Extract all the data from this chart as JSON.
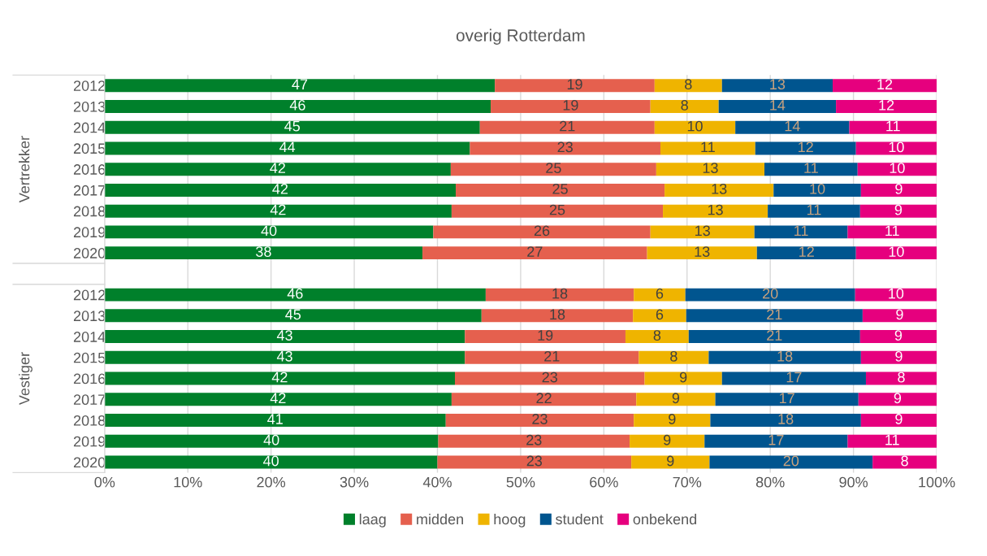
{
  "chart_data": {
    "type": "bar",
    "orientation": "horizontal",
    "stacked": true,
    "title": "overig Rotterdam",
    "annotations": [
      "Vertrekker",
      "Vestiger"
    ],
    "categories": [
      "2012",
      "2013",
      "2014",
      "2015",
      "2016",
      "2017",
      "2018",
      "2019",
      "2020",
      null,
      "2012",
      "2013",
      "2014",
      "2015",
      "2016",
      "2017",
      "2018",
      "2019",
      "2020"
    ],
    "series": [
      {
        "name": "laag",
        "color": "#00802b",
        "values": [
          46.9,
          46.4,
          45.1,
          43.9,
          41.6,
          42.2,
          41.7,
          39.5,
          38.2,
          null,
          45.8,
          45.3,
          43.3,
          43.3,
          42.1,
          41.7,
          41.0,
          40.1,
          40.0
        ],
        "value_labels": [
          "47",
          "46",
          "45",
          "44",
          "42",
          "42",
          "42",
          "40",
          "38",
          null,
          "46",
          "45",
          "43",
          "43",
          "42",
          "42",
          "41",
          "40",
          "40"
        ]
      },
      {
        "name": "midden",
        "color": "#e5604e",
        "values": [
          19.2,
          19.2,
          21.0,
          22.9,
          24.7,
          25.1,
          25.4,
          26.1,
          27.0,
          null,
          17.8,
          18.2,
          19.3,
          20.9,
          22.8,
          22.2,
          22.6,
          23.0,
          23.3
        ],
        "value_labels": [
          "19",
          "19",
          "21",
          "23",
          "25",
          "25",
          "25",
          "26",
          "27",
          null,
          "18",
          "18",
          "19",
          "21",
          "23",
          "22",
          "23",
          "23",
          "23"
        ]
      },
      {
        "name": "hoog",
        "color": "#efb400",
        "values": [
          8.1,
          8.2,
          9.7,
          11.4,
          13.0,
          13.1,
          12.6,
          12.5,
          13.2,
          null,
          6.2,
          6.4,
          7.6,
          8.4,
          9.3,
          9.5,
          9.2,
          9.0,
          9.4
        ],
        "value_labels": [
          "8",
          "8",
          "10",
          "11",
          "13",
          "13",
          "13",
          "13",
          "13",
          null,
          "6",
          "6",
          "8",
          "8",
          "9",
          "9",
          "9",
          "9",
          "9"
        ]
      },
      {
        "name": "student",
        "color": "#00558f",
        "values": [
          13.3,
          14.1,
          13.7,
          12.1,
          11.2,
          10.5,
          11.1,
          11.2,
          11.9,
          null,
          20.4,
          21.2,
          20.6,
          18.3,
          17.3,
          17.2,
          18.1,
          17.2,
          19.6
        ],
        "value_labels": [
          "13",
          "14",
          "14",
          "12",
          "11",
          "10",
          "11",
          "11",
          "12",
          null,
          "20",
          "21",
          "21",
          "18",
          "17",
          "17",
          "18",
          "17",
          "20"
        ]
      },
      {
        "name": "onbekend",
        "color": "#e6007e",
        "values": [
          12.5,
          12.1,
          10.5,
          9.7,
          9.5,
          9.1,
          9.2,
          10.7,
          9.7,
          null,
          9.8,
          8.9,
          9.2,
          9.1,
          8.5,
          9.4,
          9.1,
          10.7,
          7.7
        ],
        "value_labels": [
          "12",
          "12",
          "11",
          "10",
          "10",
          "9",
          "9",
          "11",
          "10",
          null,
          "10",
          "9",
          "9",
          "9",
          "8",
          "9",
          "9",
          "11",
          "8"
        ]
      }
    ],
    "xlim": [
      0,
      100
    ],
    "xticks": [
      {
        "value": 0,
        "label": "0%"
      },
      {
        "value": 10,
        "label": "10%"
      },
      {
        "value": 20,
        "label": "20%"
      },
      {
        "value": 30,
        "label": "30%"
      },
      {
        "value": 40,
        "label": "40%"
      },
      {
        "value": 50,
        "label": "50%"
      },
      {
        "value": 60,
        "label": "60%"
      },
      {
        "value": 70,
        "label": "70%"
      },
      {
        "value": 80,
        "label": "80%"
      },
      {
        "value": 90,
        "label": "90%"
      },
      {
        "value": 100,
        "label": "100%"
      }
    ],
    "grid": "x",
    "legend": "bottom"
  }
}
